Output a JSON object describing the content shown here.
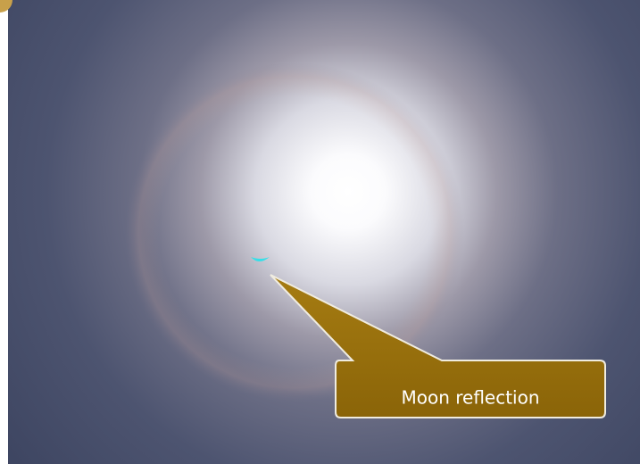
{
  "callout": {
    "label": "Moon reflection"
  }
}
